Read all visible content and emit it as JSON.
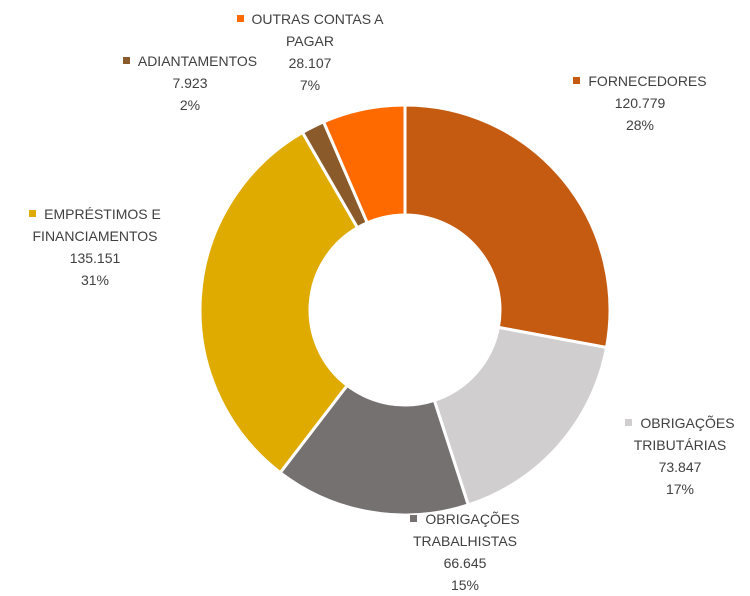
{
  "chart_data": {
    "type": "donut",
    "categories": [
      "FORNECEDORES",
      "OBRIGAÇÕES TRIBUTÁRIAS",
      "OBRIGAÇÕES TRABALHISTAS",
      "EMPRÉSTIMOS E FINANCIAMENTOS",
      "ADIANTAMENTOS",
      "OUTRAS CONTAS A PAGAR"
    ],
    "values": [
      120779,
      73847,
      66645,
      135151,
      7923,
      28107
    ],
    "value_labels": [
      "120.779",
      "73.847",
      "66.645",
      "135.151",
      "7.923",
      "28.107"
    ],
    "percentages": [
      28,
      17,
      15,
      31,
      2,
      7
    ],
    "percentage_labels": [
      "28%",
      "17%",
      "15%",
      "31%",
      "2%",
      "7%"
    ],
    "colors": [
      "#c55a11",
      "#d0cecf",
      "#767171",
      "#dfab00",
      "#8a5a2b",
      "#ff6a00"
    ]
  }
}
